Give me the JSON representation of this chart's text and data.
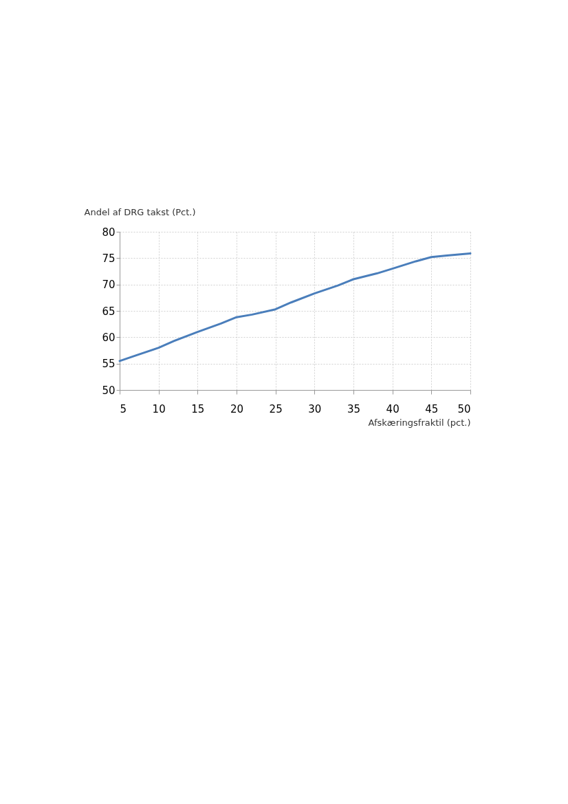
{
  "chart_data": {
    "type": "line",
    "xlabel": "Afskæringsfraktil (pct.)",
    "ylabel": "Andel af DRG takst (Pct.)",
    "x": [
      5,
      7,
      10,
      12,
      15,
      18,
      20,
      22,
      25,
      27,
      30,
      33,
      35,
      38,
      40,
      43,
      45,
      47,
      50
    ],
    "series": [
      {
        "color": "#4a7ebb",
        "values": [
          55.5,
          56.5,
          58,
          59.3,
          61,
          62.6,
          63.8,
          64.3,
          65.3,
          66.6,
          68.3,
          69.8,
          71,
          72.1,
          73,
          74.4,
          75.2,
          75.5,
          75.9
        ]
      }
    ],
    "xlim": [
      5,
      50
    ],
    "xticks": [
      5,
      10,
      15,
      20,
      25,
      30,
      35,
      40,
      45,
      50
    ],
    "ylim": [
      50,
      80
    ],
    "yticks": [
      50,
      55,
      60,
      65,
      70,
      75,
      80
    ],
    "grid": true,
    "legend": false,
    "marker": "none",
    "line_style": "solid"
  }
}
